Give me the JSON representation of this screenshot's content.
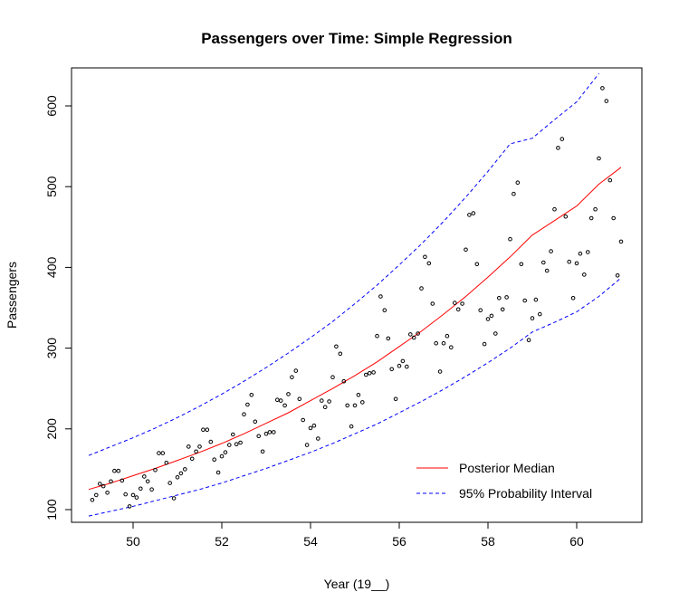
{
  "chart_data": {
    "type": "scatter",
    "title": "Passengers over Time: Simple Regression",
    "xlabel": "Year (19__)",
    "ylabel": "Passengers",
    "xlim": [
      49,
      61
    ],
    "ylim": [
      100,
      640
    ],
    "xticks": [
      50,
      52,
      54,
      56,
      58,
      60
    ],
    "yticks": [
      100,
      200,
      300,
      400,
      500,
      600
    ],
    "grid": false,
    "legend_position": "bottom-right",
    "series": [
      {
        "name": "Posterior Median",
        "type": "line",
        "color": "#ff0000",
        "dash": "solid",
        "x": [
          49.0,
          49.5,
          50.0,
          50.5,
          51.0,
          51.5,
          52.0,
          52.5,
          53.0,
          53.5,
          54.0,
          54.5,
          55.0,
          55.5,
          56.0,
          56.5,
          57.0,
          57.5,
          58.0,
          58.5,
          59.0,
          59.5,
          60.0,
          60.5,
          61.0
        ],
        "y": [
          125,
          133,
          142,
          151,
          161,
          171,
          182,
          194,
          207,
          220,
          235,
          250,
          266,
          283,
          302,
          321,
          342,
          364,
          388,
          413,
          440,
          458,
          476,
          503,
          524
        ]
      },
      {
        "name": "95% Probability Interval",
        "type": "line",
        "color": "#0000ff",
        "dash": "dashed",
        "x": [
          49.0,
          49.5,
          50.0,
          50.5,
          51.0,
          51.5,
          52.0,
          52.5,
          53.0,
          53.5,
          54.0,
          54.5,
          55.0,
          55.5,
          56.0,
          56.5,
          57.0,
          57.5,
          58.0,
          58.5,
          59.0,
          59.5,
          60.0,
          60.5
        ],
        "y": [
          167,
          178,
          189,
          201,
          214,
          228,
          243,
          259,
          276,
          294,
          313,
          333,
          355,
          378,
          403,
          429,
          457,
          487,
          519,
          553,
          560,
          583,
          605,
          640
        ]
      },
      {
        "name": "",
        "type": "line",
        "color": "#0000ff",
        "dash": "dashed",
        "x": [
          49.0,
          49.5,
          50.0,
          50.5,
          51.0,
          51.5,
          52.0,
          52.5,
          53.0,
          53.5,
          54.0,
          54.5,
          55.0,
          55.5,
          56.0,
          56.5,
          57.0,
          57.5,
          58.0,
          58.5,
          59.0,
          59.5,
          60.0,
          60.5,
          61.0
        ],
        "y": [
          92,
          98,
          104,
          111,
          118,
          125,
          133,
          142,
          151,
          161,
          171,
          182,
          194,
          206,
          220,
          234,
          249,
          265,
          282,
          300,
          320,
          332,
          345,
          364,
          387
        ]
      },
      {
        "name": "",
        "type": "scatter",
        "color": "#000000",
        "x": [
          49.08,
          49.17,
          49.25,
          49.33,
          49.42,
          49.5,
          49.58,
          49.67,
          49.75,
          49.83,
          49.92,
          50.0,
          50.08,
          50.17,
          50.25,
          50.33,
          50.42,
          50.5,
          50.58,
          50.67,
          50.75,
          50.83,
          50.92,
          51.0,
          51.08,
          51.17,
          51.25,
          51.33,
          51.42,
          51.5,
          51.58,
          51.67,
          51.75,
          51.83,
          51.92,
          52.0,
          52.08,
          52.17,
          52.25,
          52.33,
          52.42,
          52.5,
          52.58,
          52.67,
          52.75,
          52.83,
          52.92,
          53.0,
          53.08,
          53.17,
          53.25,
          53.33,
          53.42,
          53.5,
          53.58,
          53.67,
          53.75,
          53.83,
          53.92,
          54.0,
          54.08,
          54.17,
          54.25,
          54.33,
          54.42,
          54.5,
          54.58,
          54.67,
          54.75,
          54.83,
          54.92,
          55.0,
          55.08,
          55.17,
          55.25,
          55.33,
          55.42,
          55.5,
          55.58,
          55.67,
          55.75,
          55.83,
          55.92,
          56.0,
          56.08,
          56.17,
          56.25,
          56.33,
          56.42,
          56.5,
          56.58,
          56.67,
          56.75,
          56.83,
          56.92,
          57.0,
          57.08,
          57.17,
          57.25,
          57.33,
          57.42,
          57.5,
          57.58,
          57.67,
          57.75,
          57.83,
          57.92,
          58.0,
          58.08,
          58.17,
          58.25,
          58.33,
          58.42,
          58.5,
          58.58,
          58.67,
          58.75,
          58.83,
          58.92,
          59.0,
          59.08,
          59.17,
          59.25,
          59.33,
          59.42,
          59.5,
          59.58,
          59.67,
          59.75,
          59.83,
          59.92,
          60.0,
          60.08,
          60.17,
          60.25,
          60.33,
          60.42,
          60.5,
          60.58,
          60.67,
          60.75,
          60.83,
          60.92,
          61.0
        ],
        "y": [
          112,
          118,
          132,
          129,
          121,
          135,
          148,
          148,
          136,
          119,
          104,
          118,
          115,
          126,
          141,
          135,
          125,
          149,
          170,
          170,
          158,
          133,
          114,
          140,
          145,
          150,
          178,
          163,
          172,
          178,
          199,
          199,
          184,
          162,
          146,
          166,
          171,
          180,
          193,
          181,
          183,
          218,
          230,
          242,
          209,
          191,
          172,
          194,
          196,
          196,
          236,
          235,
          229,
          243,
          264,
          272,
          237,
          211,
          180,
          201,
          204,
          188,
          235,
          227,
          234,
          264,
          302,
          293,
          259,
          229,
          203,
          229,
          242,
          233,
          267,
          269,
          270,
          315,
          364,
          347,
          312,
          274,
          237,
          278,
          284,
          277,
          317,
          313,
          318,
          374,
          413,
          405,
          355,
          306,
          271,
          306,
          315,
          301,
          356,
          348,
          355,
          422,
          465,
          467,
          404,
          347,
          305,
          336,
          340,
          318,
          362,
          348,
          363,
          435,
          491,
          505,
          404,
          359,
          310,
          337,
          360,
          342,
          406,
          396,
          420,
          472,
          548,
          559,
          463,
          407,
          362,
          405,
          417,
          391,
          419,
          461,
          472,
          535,
          622,
          606,
          508,
          461,
          390,
          432
        ]
      }
    ]
  }
}
